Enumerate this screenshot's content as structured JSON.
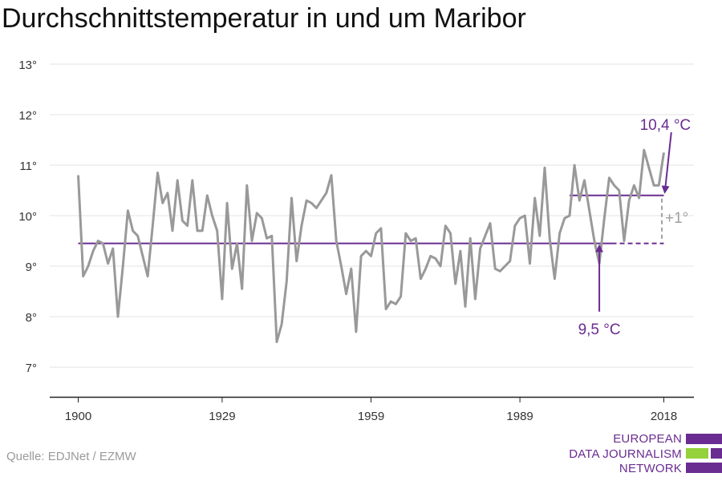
{
  "source": "Quelle: EDJNet / EZMW",
  "logo": {
    "line1": "EUROPEAN",
    "line2": "DATA JOURNALISM",
    "line3": "NETWORK",
    "colors": {
      "purple": "#6a2c91",
      "green": "#95d13a"
    }
  },
  "chart_data": {
    "type": "line",
    "title": "Durchschnittstemperatur in und um Maribor",
    "xlabel": "",
    "ylabel": "",
    "xlim": [
      1900,
      2018
    ],
    "ylim": [
      7,
      13
    ],
    "x_ticks": [
      1900,
      1929,
      1959,
      1989,
      2018
    ],
    "y_ticks": [
      7,
      8,
      9,
      10,
      11,
      12,
      13
    ],
    "y_tick_suffix": "°",
    "grid": true,
    "series": [
      {
        "color": "#999999",
        "x": [
          1900,
          1901,
          1902,
          1903,
          1904,
          1905,
          1906,
          1907,
          1908,
          1909,
          1910,
          1911,
          1912,
          1913,
          1914,
          1915,
          1916,
          1917,
          1918,
          1919,
          1920,
          1921,
          1922,
          1923,
          1924,
          1925,
          1926,
          1927,
          1928,
          1929,
          1930,
          1931,
          1932,
          1933,
          1934,
          1935,
          1936,
          1937,
          1938,
          1939,
          1940,
          1941,
          1942,
          1943,
          1944,
          1945,
          1946,
          1947,
          1948,
          1949,
          1950,
          1951,
          1952,
          1953,
          1954,
          1955,
          1956,
          1957,
          1958,
          1959,
          1960,
          1961,
          1962,
          1963,
          1964,
          1965,
          1966,
          1967,
          1968,
          1969,
          1970,
          1971,
          1972,
          1973,
          1974,
          1975,
          1976,
          1977,
          1978,
          1979,
          1980,
          1981,
          1982,
          1983,
          1984,
          1985,
          1986,
          1987,
          1988,
          1989,
          1990,
          1991,
          1992,
          1993,
          1994,
          1995,
          1996,
          1997,
          1998,
          1999,
          2000,
          2001,
          2002,
          2003,
          2004,
          2005,
          2006,
          2007,
          2008,
          2009,
          2010,
          2011,
          2012,
          2013,
          2014,
          2015,
          2016,
          2017,
          2018
        ],
        "values": [
          10.8,
          8.8,
          9.0,
          9.3,
          9.5,
          9.45,
          9.05,
          9.35,
          8.0,
          9.0,
          10.1,
          9.7,
          9.6,
          9.2,
          8.8,
          9.8,
          10.85,
          10.25,
          10.45,
          9.7,
          10.7,
          9.9,
          9.8,
          10.7,
          9.7,
          9.7,
          10.4,
          10.0,
          9.7,
          8.35,
          10.25,
          8.95,
          9.45,
          8.55,
          10.6,
          9.5,
          10.05,
          9.95,
          9.55,
          9.6,
          7.5,
          7.85,
          8.7,
          10.35,
          9.1,
          9.8,
          10.3,
          10.25,
          10.15,
          10.3,
          10.45,
          10.8,
          9.5,
          9.0,
          8.45,
          8.95,
          7.7,
          9.2,
          9.3,
          9.2,
          9.65,
          9.75,
          8.15,
          8.3,
          8.25,
          8.4,
          9.65,
          9.5,
          9.55,
          8.75,
          8.95,
          9.2,
          9.15,
          9.0,
          9.8,
          9.65,
          8.65,
          9.3,
          8.2,
          9.55,
          8.35,
          9.35,
          9.6,
          9.85,
          8.95,
          8.9,
          9.0,
          9.1,
          9.8,
          9.95,
          10.0,
          9.05,
          10.35,
          9.6,
          10.95,
          9.55,
          8.75,
          9.65,
          9.95,
          10.0,
          11.0,
          10.3,
          10.7,
          10.1,
          9.5,
          9.05,
          9.95,
          10.75,
          10.6,
          10.5,
          9.5,
          10.3,
          10.6,
          10.35,
          11.3,
          10.95,
          10.6,
          10.6,
          11.25
        ]
      }
    ],
    "reference_lines": [
      {
        "label": "9,5 °C",
        "value": 9.45,
        "from": 1900,
        "to": 2018,
        "color": "#6a2c91"
      },
      {
        "label": "10,4 °C",
        "value": 10.4,
        "from": 1999,
        "to": 2018,
        "color": "#6a2c91"
      }
    ],
    "annotations": [
      {
        "text": "+1°",
        "color": "#a0a0a0"
      }
    ]
  }
}
